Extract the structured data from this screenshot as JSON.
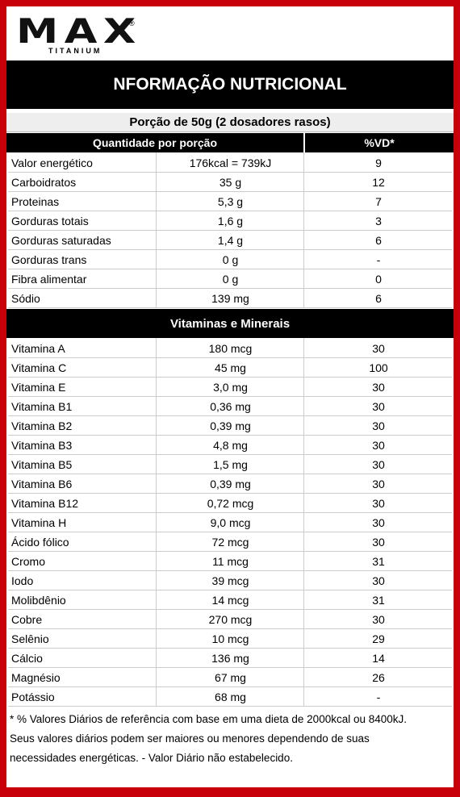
{
  "logo": {
    "text": "MAX",
    "mark": "®",
    "subtitle": "TITANIUM"
  },
  "title": "NFORMAÇÃO NUTRICIONAL",
  "portion": "Porção de 50g (2 dosadores rasos)",
  "header": {
    "quantity": "Quantidade por porção",
    "vd": "%VD*"
  },
  "nutrients": [
    [
      "Valor energético",
      "176kcal = 739kJ",
      "9"
    ],
    [
      "Carboidratos",
      "35 g",
      "12"
    ],
    [
      "Proteinas",
      "5,3 g",
      "7"
    ],
    [
      "Gorduras totais",
      "1,6 g",
      "3"
    ],
    [
      "Gorduras saturadas",
      "1,4 g",
      "6"
    ],
    [
      "Gorduras trans",
      "0 g",
      "-"
    ],
    [
      "Fibra alimentar",
      "0 g",
      "0"
    ],
    [
      "Sódio",
      "139 mg",
      "6"
    ]
  ],
  "vitamins_title": "Vitaminas e Minerais",
  "vitamins": [
    [
      "Vitamina A",
      "180 mcg",
      "30"
    ],
    [
      "Vitamina C",
      "45 mg",
      "100"
    ],
    [
      "Vitamina E",
      "3,0 mg",
      "30"
    ],
    [
      "Vitamina B1",
      "0,36 mg",
      "30"
    ],
    [
      "Vitamina B2",
      "0,39 mg",
      "30"
    ],
    [
      "Vitamina B3",
      "4,8 mg",
      "30"
    ],
    [
      "Vitamina B5",
      "1,5 mg",
      "30"
    ],
    [
      "Vitamina B6",
      "0,39 mg",
      "30"
    ],
    [
      "Vitamina B12",
      "0,72 mcg",
      "30"
    ],
    [
      "Vitamina H",
      "9,0 mcg",
      "30"
    ],
    [
      "Ácido fólico",
      "72 mcg",
      "30"
    ],
    [
      "Cromo",
      "11 mcg",
      "31"
    ],
    [
      "Iodo",
      "39 mcg",
      "30"
    ],
    [
      "Molibdênio",
      "14 mcg",
      "31"
    ],
    [
      "Cobre",
      "270 mcg",
      "30"
    ],
    [
      "Selênio",
      "10 mcg",
      "29"
    ],
    [
      "Cálcio",
      "136 mg",
      "14"
    ],
    [
      "Magnésio",
      "67 mg",
      "26"
    ],
    [
      "Potássio",
      "68 mg",
      "-"
    ]
  ],
  "footnote": [
    "* %  Valores Diários de referência com base em uma dieta de 2000kcal ou 8400kJ.",
    "Seus valores diários podem ser maiores ou menores dependendo de suas",
    "necessidades energéticas. - Valor Diário não estabelecido."
  ]
}
